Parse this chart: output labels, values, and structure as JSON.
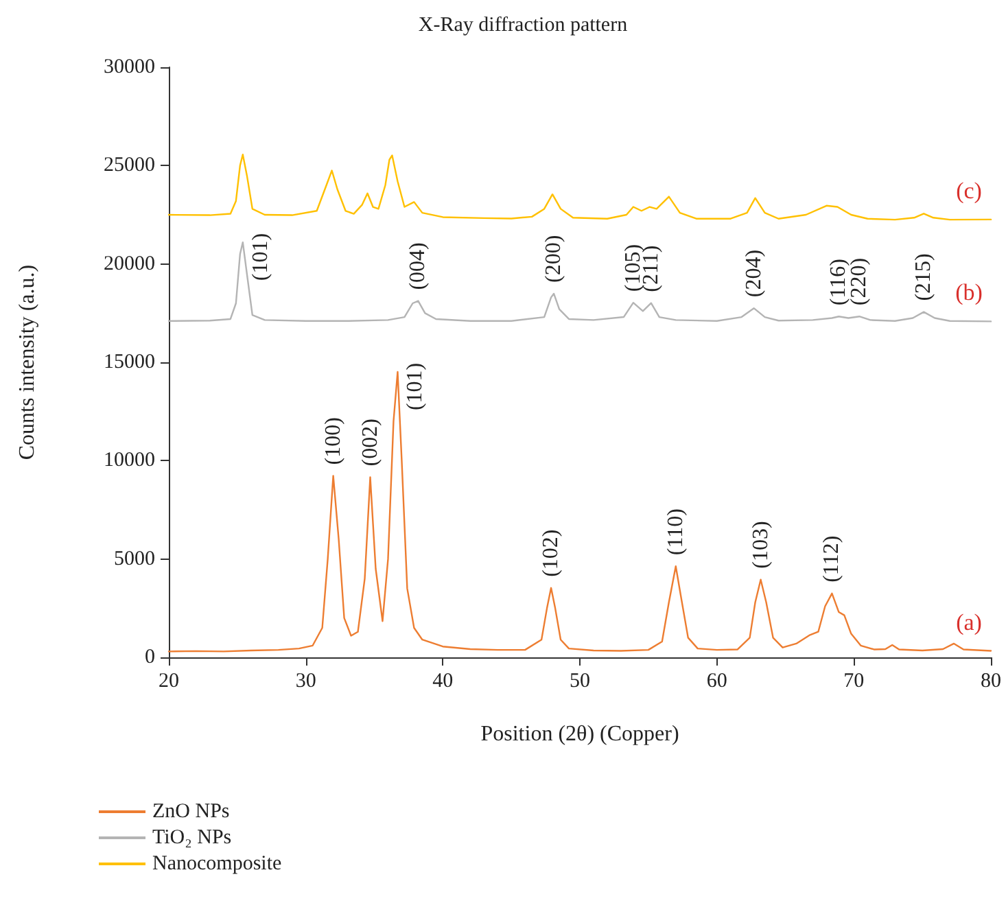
{
  "chart_data": {
    "type": "line",
    "title": "X-Ray diffraction pattern",
    "xlabel": "Position (2θ) (Copper)",
    "ylabel": "Counts intensity (a.u.)",
    "xlim": [
      20,
      80
    ],
    "xticks": [
      20,
      30,
      40,
      50,
      60,
      70,
      80
    ],
    "ylim": [
      0,
      30000
    ],
    "yticks": [
      0,
      5000,
      10000,
      15000,
      20000,
      25000,
      30000
    ],
    "grid": false,
    "legend": "bottom left",
    "marker": "none",
    "line_style": "solid",
    "series": [
      {
        "name": "ZnO NPs",
        "color": "#ed7d31",
        "x": [
          20,
          22,
          24,
          26,
          28,
          29.5,
          30.5,
          31.2,
          31.6,
          32.0,
          32.4,
          32.8,
          33.3,
          33.8,
          34.3,
          34.7,
          35.1,
          35.6,
          36.0,
          36.4,
          36.7,
          37.0,
          37.4,
          37.9,
          38.5,
          40,
          42,
          44,
          46,
          47.2,
          47.6,
          47.9,
          48.2,
          48.6,
          49.2,
          51,
          53,
          55,
          56.0,
          56.5,
          57.0,
          57.4,
          57.9,
          58.6,
          60,
          61.5,
          62.4,
          62.8,
          63.2,
          63.6,
          64.1,
          64.8,
          65.8,
          66.8,
          67.4,
          67.9,
          68.4,
          68.9,
          69.3,
          69.8,
          70.5,
          71.5,
          72.3,
          72.8,
          73.3,
          75,
          76.5,
          77.3,
          78,
          80
        ],
        "values": [
          300,
          320,
          300,
          350,
          380,
          450,
          600,
          1500,
          5000,
          9230,
          6000,
          2000,
          1100,
          1300,
          4000,
          9160,
          4500,
          1840,
          5000,
          12000,
          14510,
          10000,
          3500,
          1500,
          900,
          550,
          420,
          380,
          380,
          900,
          2500,
          3530,
          2500,
          900,
          450,
          350,
          330,
          380,
          800,
          2800,
          4630,
          3000,
          1000,
          450,
          380,
          400,
          1000,
          2800,
          3950,
          2800,
          1000,
          500,
          700,
          1140,
          1300,
          2600,
          3250,
          2300,
          2140,
          1200,
          600,
          400,
          420,
          630,
          400,
          350,
          420,
          700,
          400,
          330
        ]
      },
      {
        "name": "TiO₂ NPs",
        "color": "#b4b4b4",
        "x": [
          20,
          23,
          24.5,
          24.9,
          25.2,
          25.4,
          25.7,
          26.1,
          27,
          30,
          33,
          36,
          37.2,
          37.8,
          38.2,
          38.7,
          39.5,
          42,
          45,
          47.4,
          47.9,
          48.1,
          48.5,
          49.2,
          51,
          53.2,
          53.9,
          54.6,
          55.2,
          55.8,
          57,
          60,
          61.8,
          62.7,
          63.5,
          64.5,
          67,
          68.4,
          68.9,
          69.6,
          70.4,
          71.2,
          73,
          74.3,
          75.1,
          75.9,
          77,
          80
        ],
        "values": [
          17100,
          17120,
          17200,
          18000,
          20500,
          21100,
          19500,
          17400,
          17150,
          17100,
          17100,
          17150,
          17300,
          18000,
          18120,
          17500,
          17200,
          17100,
          17100,
          17300,
          18300,
          18490,
          17700,
          17200,
          17150,
          17300,
          18030,
          17600,
          18010,
          17300,
          17150,
          17100,
          17300,
          17750,
          17300,
          17120,
          17150,
          17250,
          17330,
          17250,
          17330,
          17150,
          17100,
          17250,
          17560,
          17250,
          17100,
          17080
        ]
      },
      {
        "name": "Nanocomposite",
        "color": "#ffc000",
        "x": [
          20,
          23,
          24.5,
          24.9,
          25.2,
          25.4,
          25.7,
          26.1,
          27,
          29,
          30.8,
          31.5,
          31.9,
          32.3,
          32.9,
          33.5,
          34.1,
          34.5,
          34.9,
          35.3,
          35.8,
          36.1,
          36.3,
          36.7,
          37.2,
          37.9,
          38.5,
          40,
          43,
          45,
          46.5,
          47.4,
          48.0,
          48.6,
          49.5,
          52,
          53.4,
          53.9,
          54.5,
          55.1,
          55.6,
          56.5,
          57.3,
          58.5,
          61,
          62.2,
          62.8,
          63.5,
          64.5,
          66.5,
          68.0,
          68.8,
          69.8,
          71,
          73,
          74.4,
          75.1,
          75.8,
          77,
          80
        ],
        "values": [
          22500,
          22480,
          22550,
          23200,
          25000,
          25560,
          24500,
          22800,
          22500,
          22480,
          22700,
          24000,
          24750,
          23800,
          22700,
          22550,
          23000,
          23590,
          22900,
          22800,
          24000,
          25300,
          25520,
          24200,
          22900,
          23150,
          22600,
          22380,
          22330,
          22310,
          22400,
          22800,
          23540,
          22800,
          22350,
          22300,
          22500,
          22900,
          22700,
          22900,
          22800,
          23420,
          22600,
          22300,
          22300,
          22600,
          23350,
          22600,
          22300,
          22500,
          22960,
          22900,
          22500,
          22300,
          22250,
          22350,
          22560,
          22350,
          22250,
          22260
        ]
      }
    ],
    "annotations": [
      {
        "text": "(101)",
        "x": 25.4,
        "y": 21100
      },
      {
        "text": "(004)",
        "x": 38.2,
        "y": 18120
      },
      {
        "text": "(200)",
        "x": 48.1,
        "y": 18490
      },
      {
        "text": "(105)",
        "x": 53.9,
        "y": 18030
      },
      {
        "text": "(211)",
        "x": 55.2,
        "y": 18010
      },
      {
        "text": "(204)",
        "x": 62.7,
        "y": 17750
      },
      {
        "text": "(116)",
        "x": 68.9,
        "y": 17330
      },
      {
        "text": "(220)",
        "x": 70.4,
        "y": 17330
      },
      {
        "text": "(215)",
        "x": 75.1,
        "y": 17560
      },
      {
        "text": "(100)",
        "x": 32.0,
        "y": 9230
      },
      {
        "text": "(002)",
        "x": 34.7,
        "y": 9160
      },
      {
        "text": "(101)",
        "x": 36.7,
        "y": 14510
      },
      {
        "text": "(102)",
        "x": 47.9,
        "y": 3530
      },
      {
        "text": "(110)",
        "x": 57.0,
        "y": 4630
      },
      {
        "text": "(103)",
        "x": 63.2,
        "y": 3950
      },
      {
        "text": "(112)",
        "x": 68.4,
        "y": 3250
      },
      {
        "text": "(c)",
        "x": 80,
        "y": 22260
      },
      {
        "text": "(b)",
        "x": 80,
        "y": 17080
      },
      {
        "text": "(a)",
        "x": 80,
        "y": 330
      }
    ]
  }
}
